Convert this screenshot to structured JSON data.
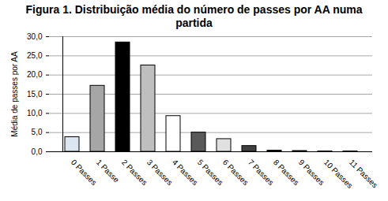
{
  "chart_data": {
    "type": "bar",
    "title": "Figura 1. Distribuição média do número de passes por AA numa partida",
    "ylabel": "Média de passes por AA",
    "categories": [
      "0 Passes",
      "1 Passe",
      "2 Passes",
      "3 Passes",
      "4 Passes",
      "5 Passes",
      "6 Passes",
      "7 Passes",
      "8 Passes",
      "9 Passes",
      "10 Passes",
      "11 Passes"
    ],
    "values": [
      3.8,
      17.2,
      28.5,
      22.5,
      9.3,
      5.0,
      3.3,
      1.5,
      0.3,
      0.2,
      0.1,
      0.1
    ],
    "colors": [
      "#dce6f0",
      "#a6a6a6",
      "#000000",
      "#bfbfbf",
      "#ffffff",
      "#595959",
      "#e0e0e0",
      "#404040",
      "#000000",
      "#000000",
      "#000000",
      "#000000"
    ],
    "ylim": [
      0,
      30
    ],
    "yticks": [
      {
        "value": 0,
        "label": "0,0"
      },
      {
        "value": 5,
        "label": "5,0"
      },
      {
        "value": 10,
        "label": "10,0"
      },
      {
        "value": 15,
        "label": "15,0"
      },
      {
        "value": 20,
        "label": "20,0"
      },
      {
        "value": 25,
        "label": "25,0"
      },
      {
        "value": 30,
        "label": "30,0"
      }
    ],
    "grid": true
  }
}
